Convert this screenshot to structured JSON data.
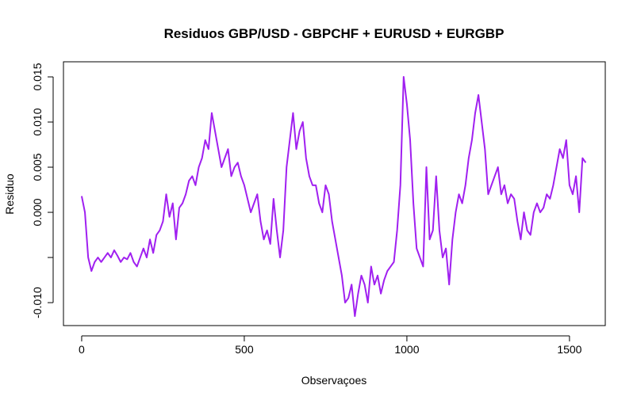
{
  "chart_data": {
    "type": "line",
    "title": "Residuos GBP/USD - GBPCHF + EURUSD + EURGBP",
    "x_label": "Observaçoes",
    "y_label": "Residuo",
    "xlim": [
      -56,
      1610
    ],
    "ylim": [
      -0.01254,
      0.01667
    ],
    "xticks": [
      0,
      500,
      1000,
      1500
    ],
    "yticks": [
      {
        "value": -0.01,
        "label": "-0.010"
      },
      {
        "value": -0.005,
        "label": null
      },
      {
        "value": 0,
        "label": "0.000"
      },
      {
        "value": 0.005,
        "label": "0.005"
      },
      {
        "value": 0.01,
        "label": "0.010"
      },
      {
        "value": 0.015,
        "label": "0.015"
      }
    ],
    "x": [
      0,
      10,
      20,
      30,
      40,
      50,
      60,
      70,
      80,
      90,
      100,
      110,
      120,
      130,
      140,
      150,
      160,
      170,
      180,
      190,
      200,
      210,
      220,
      230,
      240,
      250,
      260,
      270,
      280,
      290,
      300,
      310,
      320,
      330,
      340,
      350,
      360,
      370,
      380,
      390,
      400,
      410,
      420,
      430,
      440,
      450,
      460,
      470,
      480,
      490,
      500,
      510,
      520,
      530,
      540,
      550,
      560,
      570,
      580,
      590,
      600,
      610,
      620,
      630,
      640,
      650,
      660,
      670,
      680,
      690,
      700,
      710,
      720,
      730,
      740,
      750,
      760,
      770,
      780,
      790,
      800,
      810,
      820,
      830,
      840,
      850,
      860,
      870,
      880,
      890,
      900,
      910,
      920,
      930,
      940,
      950,
      960,
      970,
      980,
      990,
      1000,
      1010,
      1020,
      1030,
      1040,
      1050,
      1060,
      1070,
      1080,
      1090,
      1100,
      1110,
      1120,
      1130,
      1140,
      1150,
      1160,
      1170,
      1180,
      1190,
      1200,
      1210,
      1220,
      1230,
      1240,
      1250,
      1260,
      1270,
      1280,
      1290,
      1300,
      1310,
      1320,
      1330,
      1340,
      1350,
      1360,
      1370,
      1380,
      1390,
      1400,
      1410,
      1420,
      1430,
      1440,
      1450,
      1460,
      1470,
      1480,
      1490,
      1500,
      1510,
      1520,
      1530,
      1540,
      1550
    ],
    "series": [
      {
        "color": "#a020f0",
        "values": [
          0.0018,
          0.0,
          -0.005,
          -0.0065,
          -0.0055,
          -0.005,
          -0.0055,
          -0.005,
          -0.0045,
          -0.005,
          -0.0042,
          -0.0048,
          -0.0055,
          -0.005,
          -0.0052,
          -0.0045,
          -0.0055,
          -0.006,
          -0.005,
          -0.004,
          -0.005,
          -0.003,
          -0.0045,
          -0.0025,
          -0.002,
          -0.001,
          0.002,
          -0.0005,
          0.001,
          -0.003,
          0.0005,
          0.001,
          0.002,
          0.0035,
          0.004,
          0.003,
          0.005,
          0.006,
          0.008,
          0.007,
          0.011,
          0.009,
          0.007,
          0.005,
          0.006,
          0.007,
          0.004,
          0.005,
          0.0055,
          0.004,
          0.003,
          0.0015,
          0.0,
          0.001,
          0.002,
          -0.001,
          -0.003,
          -0.002,
          -0.0035,
          0.0015,
          -0.002,
          -0.005,
          -0.002,
          0.005,
          0.008,
          0.011,
          0.007,
          0.009,
          0.01,
          0.006,
          0.004,
          0.003,
          0.003,
          0.001,
          0.0,
          0.003,
          0.002,
          -0.001,
          -0.003,
          -0.005,
          -0.007,
          -0.01,
          -0.0095,
          -0.008,
          -0.0115,
          -0.009,
          -0.007,
          -0.008,
          -0.01,
          -0.006,
          -0.008,
          -0.007,
          -0.009,
          -0.0075,
          -0.0065,
          -0.006,
          -0.0055,
          -0.002,
          0.003,
          0.015,
          0.012,
          0.008,
          0.001,
          -0.004,
          -0.005,
          -0.006,
          0.005,
          -0.003,
          -0.002,
          0.004,
          -0.002,
          -0.005,
          -0.004,
          -0.008,
          -0.003,
          0.0,
          0.002,
          0.001,
          0.003,
          0.006,
          0.008,
          0.011,
          0.013,
          0.01,
          0.007,
          0.002,
          0.003,
          0.004,
          0.005,
          0.002,
          0.003,
          0.001,
          0.002,
          0.0015,
          -0.001,
          -0.003,
          0.0,
          -0.002,
          -0.0025,
          0.0,
          0.001,
          0.0,
          0.0005,
          0.002,
          0.0015,
          0.003,
          0.005,
          0.007,
          0.006,
          0.008,
          0.003,
          0.002,
          0.004,
          0.0,
          0.006,
          0.0055
        ]
      }
    ]
  }
}
